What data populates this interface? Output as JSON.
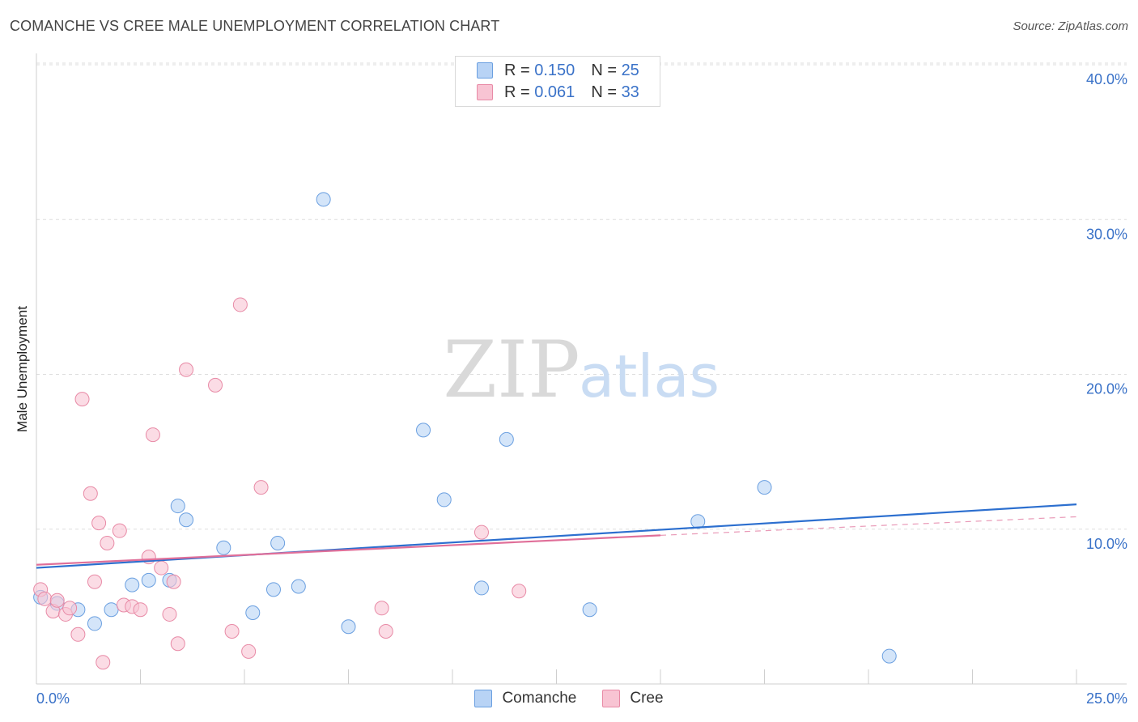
{
  "title": "COMANCHE VS CREE MALE UNEMPLOYMENT CORRELATION CHART",
  "source": "Source: ZipAtlas.com",
  "watermark": {
    "zip": "ZIP",
    "atlas": "atlas"
  },
  "legend": {
    "r_label": "R = ",
    "n_label": "N = ",
    "rows": [
      {
        "r": "0.150",
        "n": "25"
      },
      {
        "r": "0.061",
        "n": "33"
      }
    ]
  },
  "bottom_legend": [
    "Comanche",
    "Cree"
  ],
  "colors": {
    "comanche_fill": "#b8d3f5",
    "comanche_stroke": "#6a9fe0",
    "comanche_line": "#2c6fcf",
    "cree_fill": "#f8c4d3",
    "cree_stroke": "#e88aa6",
    "cree_line": "#e06f99",
    "axis_label": "#3a72c8"
  },
  "chart_data": {
    "type": "scatter",
    "title": "COMANCHE VS CREE MALE UNEMPLOYMENT CORRELATION CHART",
    "xlabel": "",
    "ylabel": "Male Unemployment",
    "xlim": [
      0,
      25
    ],
    "ylim": [
      0,
      40
    ],
    "x_tick_labels": [
      "0.0%",
      "25.0%"
    ],
    "y_ticks": [
      10,
      20,
      30,
      40
    ],
    "y_tick_labels": [
      "10.0%",
      "20.0%",
      "30.0%",
      "40.0%"
    ],
    "series": [
      {
        "name": "Comanche",
        "r": 0.15,
        "n": 25,
        "trend": {
          "x0": 0,
          "y0": 7.5,
          "x1": 25,
          "y1": 11.6
        },
        "points": [
          [
            0.1,
            5.6
          ],
          [
            0.5,
            5.2
          ],
          [
            1.0,
            4.8
          ],
          [
            1.4,
            3.9
          ],
          [
            1.8,
            4.8
          ],
          [
            2.3,
            6.4
          ],
          [
            2.7,
            6.7
          ],
          [
            3.2,
            6.7
          ],
          [
            3.4,
            11.5
          ],
          [
            3.6,
            10.6
          ],
          [
            4.5,
            8.8
          ],
          [
            5.2,
            4.6
          ],
          [
            5.7,
            6.1
          ],
          [
            5.8,
            9.1
          ],
          [
            6.3,
            6.3
          ],
          [
            6.9,
            31.3
          ],
          [
            7.5,
            3.7
          ],
          [
            9.3,
            16.4
          ],
          [
            9.8,
            11.9
          ],
          [
            10.7,
            6.2
          ],
          [
            11.3,
            15.8
          ],
          [
            13.3,
            4.8
          ],
          [
            15.9,
            10.5
          ],
          [
            17.5,
            12.7
          ],
          [
            20.5,
            1.8
          ]
        ]
      },
      {
        "name": "Cree",
        "r": 0.061,
        "n": 33,
        "trend": {
          "x0": 0,
          "y0": 7.7,
          "x1": 15,
          "y1": 9.6,
          "dash_x1": 25,
          "dash_y1": 10.8
        },
        "points": [
          [
            0.1,
            6.1
          ],
          [
            0.2,
            5.5
          ],
          [
            0.4,
            4.7
          ],
          [
            0.5,
            5.4
          ],
          [
            0.7,
            4.5
          ],
          [
            0.8,
            4.9
          ],
          [
            1.0,
            3.2
          ],
          [
            1.1,
            18.4
          ],
          [
            1.3,
            12.3
          ],
          [
            1.4,
            6.6
          ],
          [
            1.5,
            10.4
          ],
          [
            1.6,
            1.4
          ],
          [
            1.7,
            9.1
          ],
          [
            2.0,
            9.9
          ],
          [
            2.1,
            5.1
          ],
          [
            2.3,
            5.0
          ],
          [
            2.5,
            4.8
          ],
          [
            2.7,
            8.2
          ],
          [
            2.8,
            16.1
          ],
          [
            3.0,
            7.5
          ],
          [
            3.2,
            4.5
          ],
          [
            3.3,
            6.6
          ],
          [
            3.4,
            2.6
          ],
          [
            3.6,
            20.3
          ],
          [
            4.3,
            19.3
          ],
          [
            4.7,
            3.4
          ],
          [
            4.9,
            24.5
          ],
          [
            5.1,
            2.1
          ],
          [
            5.4,
            12.7
          ],
          [
            8.3,
            4.9
          ],
          [
            8.4,
            3.4
          ],
          [
            10.7,
            9.8
          ],
          [
            11.6,
            6.0
          ]
        ]
      }
    ]
  }
}
